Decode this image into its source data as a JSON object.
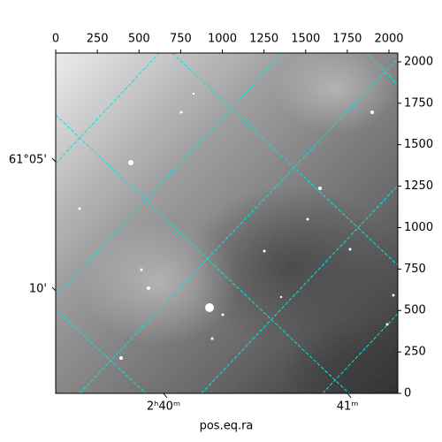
{
  "chart_data": {
    "type": "image",
    "xlabel": "pos.eq.ra",
    "xlim": [
      0,
      2053
    ],
    "ylim": [
      0,
      2053
    ],
    "xticks": [
      0,
      250,
      500,
      750,
      1000,
      1250,
      1500,
      1750,
      2000
    ],
    "yticks": [
      0,
      250,
      500,
      750,
      1000,
      1250,
      1500,
      1750,
      2000
    ],
    "ra_ticks": [
      {
        "value": 647,
        "label": "2ʰ40ᵐ"
      },
      {
        "value": 1751,
        "label": "41ᵐ"
      }
    ],
    "dec_ticks": [
      {
        "value": 1397,
        "label": "61°05'"
      },
      {
        "value": 619,
        "label": "10'"
      }
    ],
    "grid": true,
    "grid_color": "#00e5e5"
  }
}
